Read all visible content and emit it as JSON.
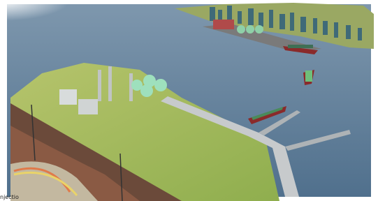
{
  "caption": "njectio"
}
